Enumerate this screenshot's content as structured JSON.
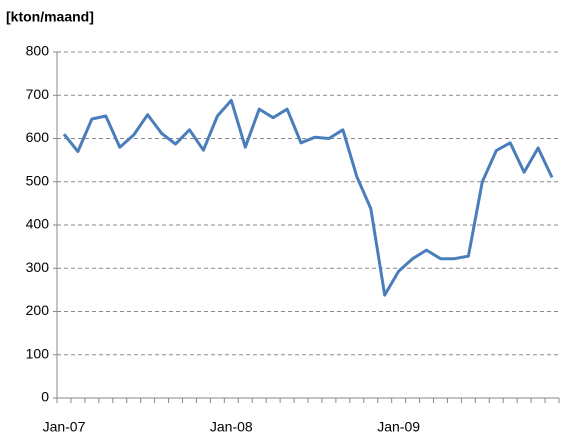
{
  "chart_data": {
    "type": "line",
    "title": "[kton/maand]",
    "categories": [
      "Jan-07",
      null,
      null,
      null,
      null,
      null,
      null,
      null,
      null,
      null,
      null,
      null,
      "Jan-08",
      null,
      null,
      null,
      null,
      null,
      null,
      null,
      null,
      null,
      null,
      null,
      "Jan-09",
      null,
      null,
      null,
      null,
      null,
      null,
      null,
      null,
      null,
      null,
      null
    ],
    "series": [
      {
        "name": null,
        "color": "#4a7ebb",
        "values": [
          610,
          570,
          645,
          652,
          580,
          608,
          655,
          612,
          587,
          620,
          573,
          652,
          688,
          580,
          668,
          648,
          668,
          590,
          603,
          600,
          620,
          512,
          438,
          238,
          293,
          322,
          342,
          322,
          322,
          328,
          500,
          572,
          590,
          522,
          578,
          510
        ]
      }
    ],
    "ylim": [
      0,
      800
    ],
    "yticks": [
      0,
      100,
      200,
      300,
      400,
      500,
      600,
      700,
      800
    ],
    "grid": true
  }
}
